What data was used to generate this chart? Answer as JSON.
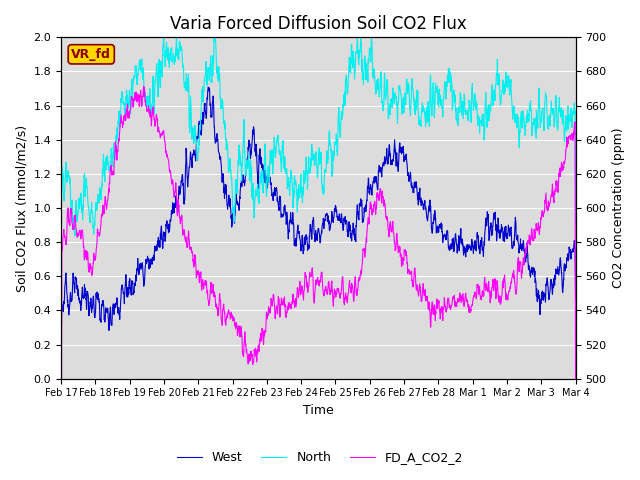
{
  "title": "Varia Forced Diffusion Soil CO2 Flux",
  "xlabel": "Time",
  "ylabel_left": "Soil CO2 Flux (mmol/m2/s)",
  "ylabel_right": "CO2 Concentration (ppm)",
  "ylim_left": [
    0.0,
    2.0
  ],
  "ylim_right": [
    500,
    700
  ],
  "yticks_left": [
    0.0,
    0.2,
    0.4,
    0.6,
    0.8,
    1.0,
    1.2,
    1.4,
    1.6,
    1.8,
    2.0
  ],
  "yticks_right": [
    500,
    520,
    540,
    560,
    580,
    600,
    620,
    640,
    660,
    680,
    700
  ],
  "xtick_labels": [
    "Feb 17",
    "Feb 18",
    "Feb 19",
    "Feb 20",
    "Feb 21",
    "Feb 22",
    "Feb 23",
    "Feb 24",
    "Feb 25",
    "Feb 26",
    "Feb 27",
    "Feb 28",
    "Mar 1",
    "Mar 2",
    "Mar 3",
    "Mar 4"
  ],
  "color_west": "#0000CD",
  "color_north": "#00EFEF",
  "color_co2": "#FF00FF",
  "legend_entries": [
    "West",
    "North",
    "FD_A_CO2_2"
  ],
  "annotation_text": "VR_fd",
  "annotation_color": "#8B0000",
  "annotation_bg": "#FFD700",
  "bg_color": "#DCDCDC",
  "fig_bg": "#FFFFFF",
  "grid_color": "#FFFFFF",
  "title_fontsize": 12,
  "label_fontsize": 9,
  "tick_fontsize": 8,
  "linewidth": 0.8
}
